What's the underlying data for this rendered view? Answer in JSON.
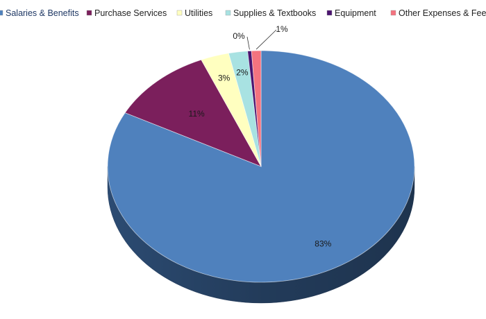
{
  "chart_data": {
    "type": "pie",
    "title": "",
    "three_d": true,
    "legend_position": "top",
    "categories": [
      "Salaries & Benefits",
      "Purchase Services",
      "Utilities",
      "Supplies & Textbooks",
      "Equipment",
      "Other Expenses & Fees"
    ],
    "values": [
      83,
      11,
      3,
      2,
      0.4,
      1
    ],
    "data_labels": [
      "83%",
      "11%",
      "3%",
      "2%",
      "0%",
      "1%"
    ],
    "colors": [
      "#4F81BD",
      "#7B1F5C",
      "#FFFFC0",
      "#A8E2E2",
      "#4B1470",
      "#F4737F"
    ],
    "side_color": "#2E4F78"
  }
}
